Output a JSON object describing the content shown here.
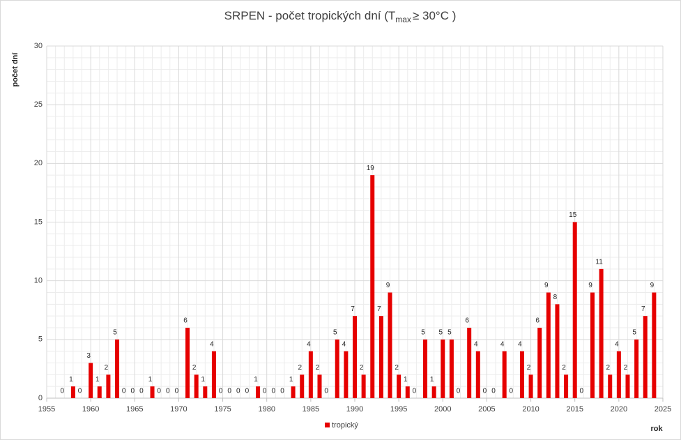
{
  "chart_data": {
    "type": "bar",
    "title": "SRPEN - počet tropických dní (T",
    "title_subscript": "max",
    "title_end": "≥ 30°C )",
    "y_label": "počet dní",
    "x_label": "rok",
    "x": [
      1957,
      1958,
      1959,
      1960,
      1961,
      1962,
      1963,
      1964,
      1965,
      1966,
      1967,
      1968,
      1969,
      1970,
      1971,
      1972,
      1973,
      1974,
      1975,
      1976,
      1977,
      1978,
      1979,
      1980,
      1981,
      1982,
      1983,
      1984,
      1985,
      1986,
      1987,
      1988,
      1989,
      1990,
      1991,
      1992,
      1993,
      1994,
      1995,
      1996,
      1997,
      1998,
      1999,
      2000,
      2001,
      2002,
      2003,
      2004,
      2005,
      2006,
      2007,
      2008,
      2009,
      2010,
      2011,
      2012,
      2013,
      2014,
      2015,
      2016,
      2017,
      2018,
      2019,
      2020,
      2021,
      2022,
      2023,
      2024
    ],
    "series": [
      {
        "name": "tropický",
        "color": "#e60000",
        "values": [
          0,
          1,
          0,
          3,
          1,
          2,
          5,
          0,
          0,
          0,
          1,
          0,
          0,
          0,
          6,
          2,
          1,
          4,
          0,
          0,
          0,
          0,
          1,
          0,
          0,
          0,
          1,
          2,
          4,
          2,
          0,
          5,
          4,
          7,
          2,
          19,
          7,
          9,
          2,
          1,
          0,
          5,
          1,
          5,
          5,
          0,
          6,
          4,
          0,
          0,
          4,
          0,
          4,
          2,
          6,
          9,
          8,
          2,
          15,
          0,
          9,
          11,
          2,
          4,
          2,
          5,
          7,
          9
        ]
      }
    ],
    "xlim": [
      1955,
      2025
    ],
    "xticks": [
      1955,
      1960,
      1965,
      1970,
      1975,
      1980,
      1985,
      1990,
      1995,
      2000,
      2005,
      2010,
      2015,
      2020,
      2025
    ],
    "ylim": [
      0,
      30
    ],
    "yticks": [
      0,
      5,
      10,
      15,
      20,
      25,
      30
    ],
    "grid": true,
    "legend": "bottom"
  }
}
